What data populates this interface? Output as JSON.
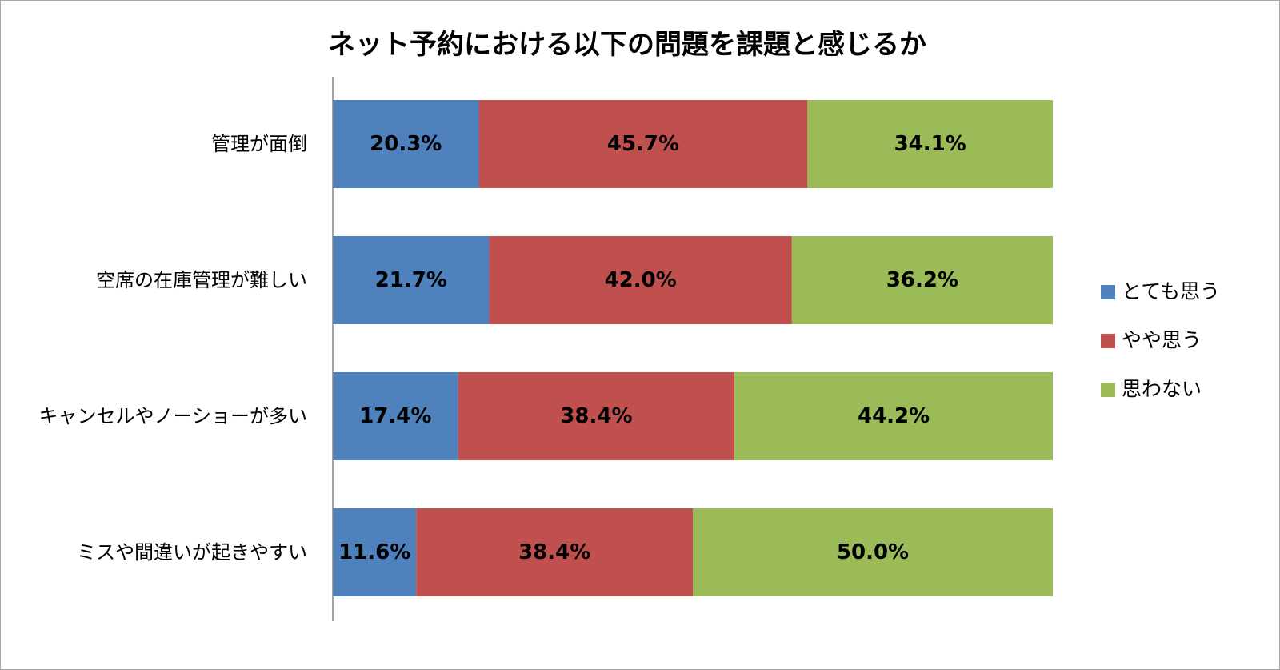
{
  "chart_data": {
    "type": "bar",
    "orientation": "horizontal",
    "stacked": "percent",
    "title": "ネット予約における以下の問題を課題と感じるか",
    "categories": [
      "管理が面倒",
      "空席の在庫管理が難しい",
      "キャンセルやノーショーが多い",
      "ミスや間違いが起きやすい"
    ],
    "series": [
      {
        "name": "とても思う",
        "color": "#4f81bd",
        "values": [
          20.3,
          21.7,
          17.4,
          11.6
        ],
        "labels": [
          "20.3%",
          "21.7%",
          "17.4%",
          "11.6%"
        ]
      },
      {
        "name": "やや思う",
        "color": "#c0504d",
        "values": [
          45.7,
          42.0,
          38.4,
          38.4
        ],
        "labels": [
          "45.7%",
          "42.0%",
          "38.4%",
          "38.4%"
        ]
      },
      {
        "name": "思わない",
        "color": "#9bbb59",
        "values": [
          34.1,
          36.2,
          44.2,
          50.0
        ],
        "labels": [
          "34.1%",
          "36.2%",
          "44.2%",
          "50.0%"
        ]
      }
    ],
    "xlim": [
      0,
      100
    ],
    "grid": false,
    "legend": "right"
  }
}
